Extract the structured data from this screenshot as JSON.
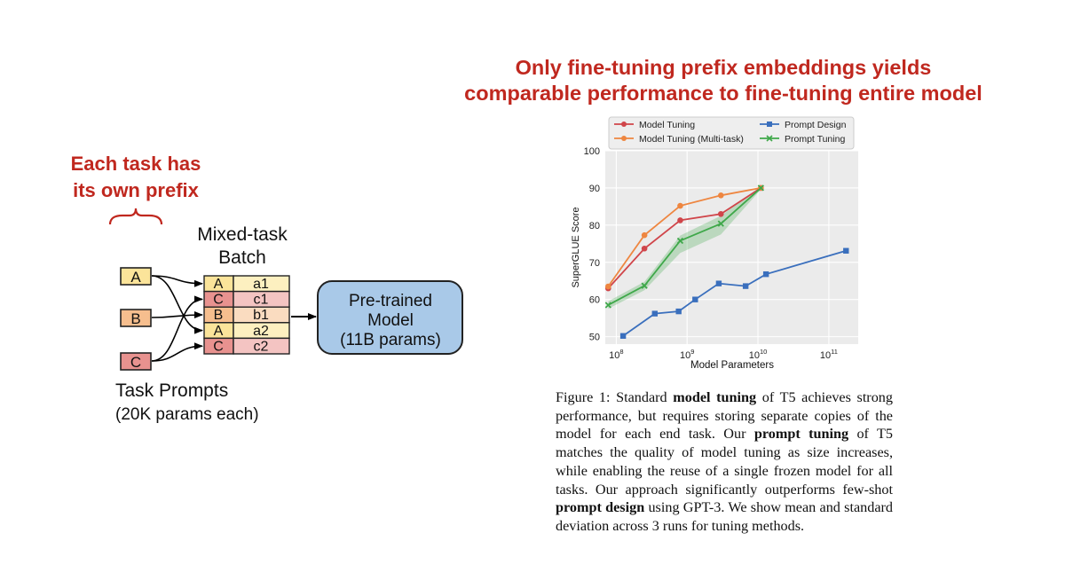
{
  "headline": {
    "line1": "Only fine-tuning prefix embeddings yields",
    "line2": "comparable performance to fine-tuning entire model"
  },
  "left_note": {
    "line1": "Each task has",
    "line2": "its own prefix"
  },
  "diagram": {
    "batch_title_line1": "Mixed-task",
    "batch_title_line2": "Batch",
    "task_prompts": [
      "A",
      "B",
      "C"
    ],
    "batch_rows": [
      {
        "prefix": "A",
        "input": "a1",
        "color": "#fbe49a",
        "cell_color": "#fdf0c0"
      },
      {
        "prefix": "C",
        "input": "c1",
        "color": "#e8928f",
        "cell_color": "#f4c4c2"
      },
      {
        "prefix": "B",
        "input": "b1",
        "color": "#f6be8e",
        "cell_color": "#fadcc0"
      },
      {
        "prefix": "A",
        "input": "a2",
        "color": "#fbe49a",
        "cell_color": "#fdf0c0"
      },
      {
        "prefix": "C",
        "input": "c2",
        "color": "#e8928f",
        "cell_color": "#f4c4c2"
      }
    ],
    "prompt_colors": {
      "A": "#fbe49a",
      "B": "#f6be8e",
      "C": "#e8928f"
    },
    "model_line1": "Pre-trained",
    "model_line2": "Model",
    "model_line3": "(11B params)",
    "model_color": "#a9c9e8",
    "prompts_label_line1": "Task Prompts",
    "prompts_label_line2": "(20K params each)"
  },
  "chart_data": {
    "type": "line",
    "title": "",
    "xlabel": "Model Parameters",
    "ylabel": "SuperGLUE Score",
    "xscale": "log",
    "xlim": [
      70000000.0,
      260000000000.0
    ],
    "ylim": [
      48,
      100
    ],
    "yticks": [
      50,
      60,
      70,
      80,
      90,
      100
    ],
    "xticks": [
      {
        "value": 100000000.0,
        "base": "10",
        "exp": "8"
      },
      {
        "value": 1000000000.0,
        "base": "10",
        "exp": "9"
      },
      {
        "value": 10000000000.0,
        "base": "10",
        "exp": "10"
      },
      {
        "value": 100000000000.0,
        "base": "10",
        "exp": "11"
      }
    ],
    "grid": true,
    "legend_position": "top",
    "series": [
      {
        "name": "Model Tuning",
        "color": "#d0454a",
        "marker": "circle",
        "x": [
          77000000.0,
          250000000.0,
          800000000.0,
          3000000000.0,
          11000000000.0
        ],
        "y": [
          63,
          73.7,
          81.3,
          83,
          90
        ]
      },
      {
        "name": "Model Tuning (Multi-task)",
        "color": "#ee8640",
        "marker": "circle",
        "x": [
          77000000.0,
          250000000.0,
          800000000.0,
          3000000000.0,
          11000000000.0
        ],
        "y": [
          63.5,
          77.3,
          85.2,
          88,
          90
        ]
      },
      {
        "name": "Prompt Design",
        "color": "#3a6fbd",
        "marker": "square",
        "x": [
          125000000.0,
          350000000.0,
          760000000.0,
          1300000000.0,
          2800000000.0,
          6700000000.0,
          13000000000.0,
          175000000000.0
        ],
        "y": [
          50.2,
          56.2,
          56.8,
          60,
          64.3,
          63.6,
          66.8,
          73.1
        ]
      },
      {
        "name": "Prompt Tuning",
        "color": "#3fa84a",
        "marker": "x",
        "x": [
          77000000.0,
          250000000.0,
          800000000.0,
          3000000000.0,
          11000000000.0
        ],
        "y": [
          58.5,
          63.7,
          75.8,
          80.4,
          90
        ],
        "band": [
          [
            57.5,
            59.5
          ],
          [
            62.5,
            64.8
          ],
          [
            72.5,
            77.2
          ],
          [
            77.5,
            82.5
          ],
          [
            89.6,
            90.4
          ]
        ]
      }
    ]
  },
  "caption": {
    "fig": "Figure 1: Standard ",
    "b1": "model tuning",
    "t1": " of T5 achieves strong performance, but requires storing separate copies of the model for each end task. Our ",
    "b2": "prompt tuning",
    "t2": " of T5 matches the quality of model tuning as size increases, while enabling the reuse of a single frozen model for all tasks. Our approach significantly outperforms few-shot ",
    "b3": "prompt design",
    "t3": " using GPT-3. We show mean and standard deviation across 3 runs for tuning methods."
  }
}
